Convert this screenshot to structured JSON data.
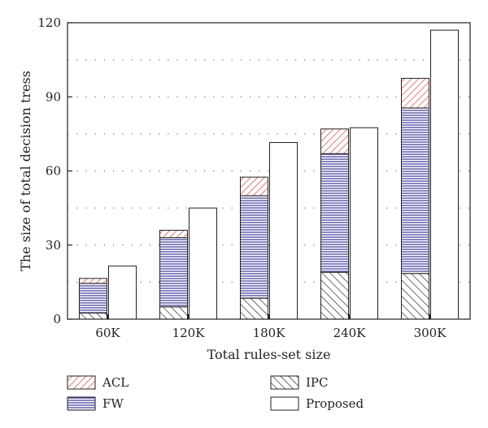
{
  "chart_data": {
    "type": "bar",
    "stacked_group": [
      "IPC",
      "FW",
      "ACL"
    ],
    "categories": [
      "60K",
      "120K",
      "180K",
      "240K",
      "300K"
    ],
    "series": [
      {
        "name": "IPC",
        "values": [
          2.5,
          5,
          8.5,
          19,
          18.5
        ],
        "color": "#222222",
        "pattern": "diagonal-hatch"
      },
      {
        "name": "FW",
        "values": [
          12,
          28,
          41.5,
          48,
          67
        ],
        "color": "#3a3a9a",
        "pattern": "horizontal-lines"
      },
      {
        "name": "ACL",
        "values": [
          2,
          3,
          7.5,
          10,
          12
        ],
        "color": "#d23a2a",
        "pattern": "diagonal-hatch"
      },
      {
        "name": "Proposed",
        "values": [
          21.5,
          45,
          71.5,
          77.5,
          117
        ],
        "color": "#ffffff",
        "pattern": "none"
      }
    ],
    "xlabel": "Total rules-set size",
    "ylabel": "The size of total decision tress",
    "ylim": [
      0,
      120
    ],
    "yticks": [
      0,
      30,
      60,
      90,
      120
    ],
    "grid": "horizontal dotted",
    "legend": {
      "placement": "bottom",
      "entries": [
        "ACL",
        "IPC",
        "FW",
        "Proposed"
      ]
    }
  }
}
